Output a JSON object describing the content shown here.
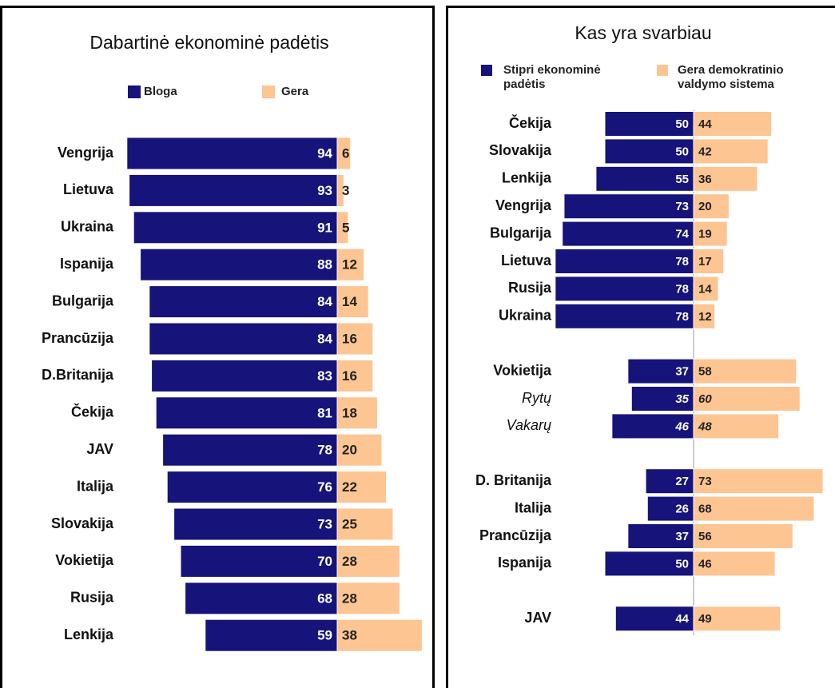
{
  "chart_data": [
    {
      "type": "diverging-bar",
      "title": "Dabartinė ekonominė padėtis",
      "categories": [
        "Vengrija",
        "Lietuva",
        "Ukraina",
        "Ispanija",
        "Bulgarija",
        "Prancūzija",
        "D.Britanija",
        "Čekija",
        "JAV",
        "Italija",
        "Slovakija",
        "Vokietija",
        "Rusija",
        "Lenkija"
      ],
      "series": [
        {
          "name": "Bloga",
          "color": "#16137a",
          "values": [
            94,
            93,
            91,
            88,
            84,
            84,
            83,
            81,
            78,
            76,
            73,
            70,
            68,
            59
          ]
        },
        {
          "name": "Gera",
          "color": "#fcc592",
          "values": [
            6,
            3,
            5,
            12,
            14,
            16,
            16,
            18,
            20,
            22,
            25,
            28,
            28,
            38
          ]
        }
      ]
    },
    {
      "type": "diverging-bar",
      "title": "Kas yra svarbiau",
      "categories": [
        "Čekija",
        "Slovakija",
        "Lenkija",
        "Vengrija",
        "Bulgarija",
        "Lietuva",
        "Rusija",
        "Ukraina",
        "Vokietija",
        "Rytų",
        "Vakarų",
        "D. Britanija",
        "Italija",
        "Prancūzija",
        "Ispanija",
        "JAV"
      ],
      "series": [
        {
          "name": "Stipri ekonominė padėtis",
          "color": "#16137a",
          "values": [
            50,
            50,
            55,
            73,
            74,
            78,
            78,
            78,
            37,
            35,
            46,
            27,
            26,
            37,
            50,
            44
          ]
        },
        {
          "name": "Gera demokratinio valdymo sistema",
          "color": "#fcc592",
          "values": [
            44,
            42,
            36,
            20,
            19,
            17,
            14,
            12,
            58,
            60,
            48,
            73,
            68,
            56,
            46,
            49
          ]
        }
      ]
    }
  ]
}
